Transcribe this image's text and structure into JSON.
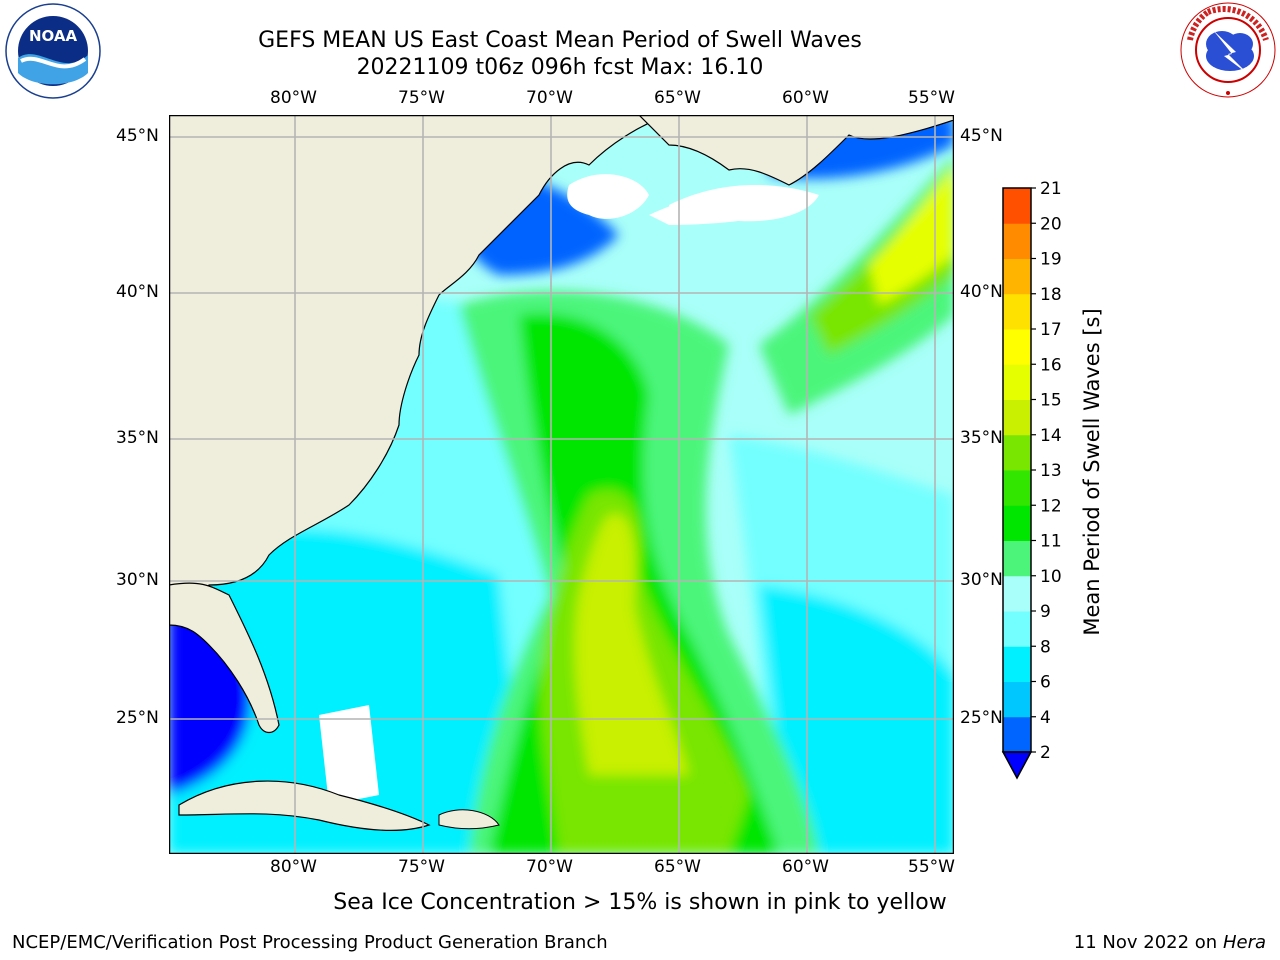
{
  "header": {
    "title_line1": "GEFS MEAN US East Coast Mean Period of Swell Waves",
    "title_line2": "20221109 t06z 096h fcst   Max: 16.10"
  },
  "logos": {
    "left": "NOAA",
    "left_ring": "NATIONAL OCEANIC AND ATMOSPHERIC ADMINISTRATION · U.S. DEPARTMENT OF COMMERCE",
    "right_ring": "NATIONAL WEATHER SERVICE"
  },
  "map": {
    "lon_labels": [
      "80°W",
      "75°W",
      "70°W",
      "65°W",
      "60°W",
      "55°W"
    ],
    "lat_labels": [
      "45°N",
      "40°N",
      "35°N",
      "30°N",
      "25°N"
    ],
    "colors": {
      "land": "#efeedd",
      "ice_free_white": "#ffffff",
      "grid": "#b4b4b4"
    }
  },
  "colorbar": {
    "label": "Mean Period of Swell Waves [s]",
    "ticks": [
      "2",
      "4",
      "6",
      "8",
      "9",
      "10",
      "11",
      "12",
      "13",
      "14",
      "15",
      "16",
      "17",
      "18",
      "19",
      "20",
      "21"
    ],
    "colors": [
      "#0000ff",
      "#0064ff",
      "#00c8ff",
      "#00f0ff",
      "#73ffff",
      "#a9fff9",
      "#4cf57a",
      "#00e600",
      "#32e600",
      "#78e600",
      "#c8f000",
      "#e6ff00",
      "#ffff00",
      "#ffe100",
      "#ffb400",
      "#ff8c00",
      "#ff5000",
      "#ff2800",
      "#ff0000"
    ]
  },
  "footer": {
    "sea_ice_note": "Sea Ice Concentration > 15% is shown in pink to yellow",
    "credit": "NCEP/EMC/Verification Post Processing Product Generation Branch",
    "date": "11 Nov 2022 on",
    "host": "Hera"
  }
}
